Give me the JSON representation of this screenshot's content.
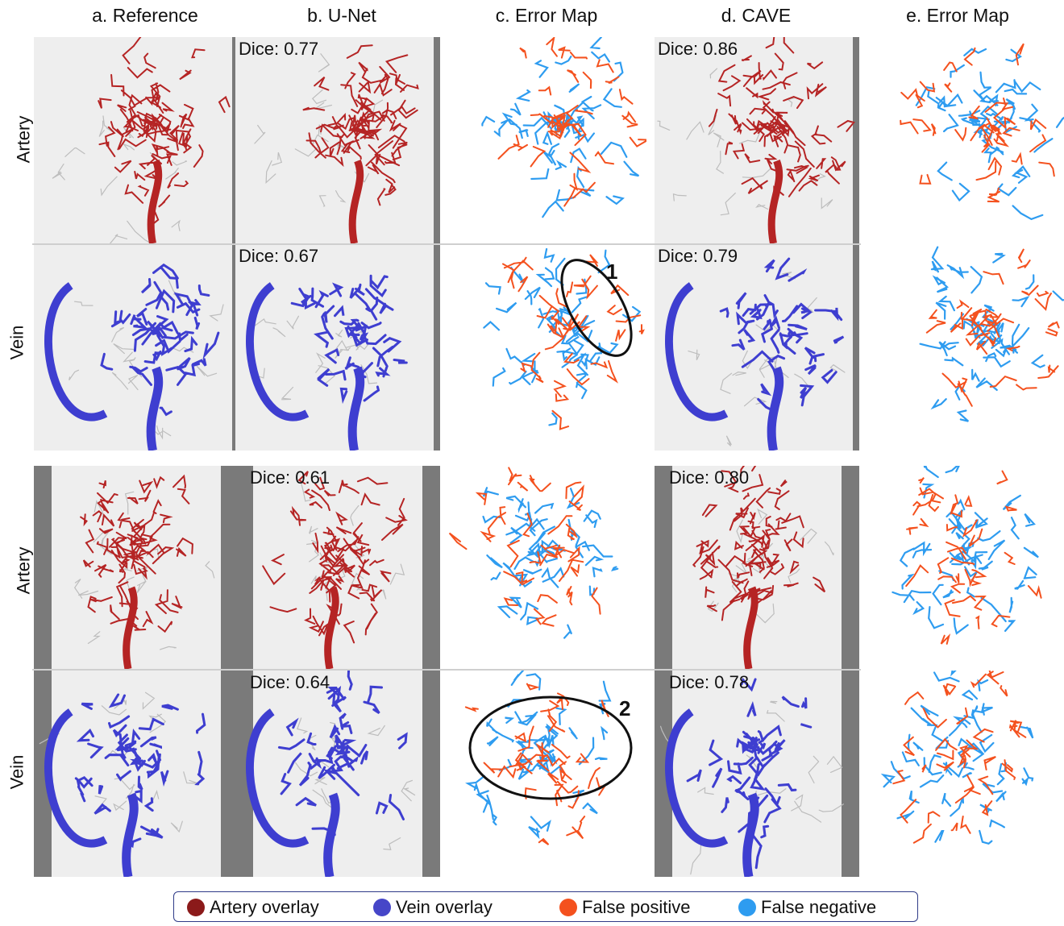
{
  "columns": [
    "a. Reference",
    "b. U-Net",
    "c. Error Map",
    "d. CAVE",
    "e. Error Map"
  ],
  "rows": [
    "Artery",
    "Vein",
    "Artery",
    "Vein"
  ],
  "dice": {
    "unet": [
      "Dice: 0.77",
      "Dice: 0.67",
      "Dice: 0.61",
      "Dice: 0.64"
    ],
    "cave": [
      "Dice: 0.86",
      "Dice: 0.79",
      "Dice: 0.80",
      "Dice: 0.78"
    ]
  },
  "markers": [
    "1",
    "2"
  ],
  "legend": [
    {
      "label": "Artery overlay",
      "color": "#8b1a1a"
    },
    {
      "label": "Vein overlay",
      "color": "#4646c8"
    },
    {
      "label": "False positive",
      "color": "#f4511e"
    },
    {
      "label": "False negative",
      "color": "#2e9cf0"
    }
  ],
  "colors": {
    "artery": "#b52424",
    "vein": "#3e3ed0",
    "false_positive": "#f4511e",
    "false_negative": "#2e9cf0"
  }
}
